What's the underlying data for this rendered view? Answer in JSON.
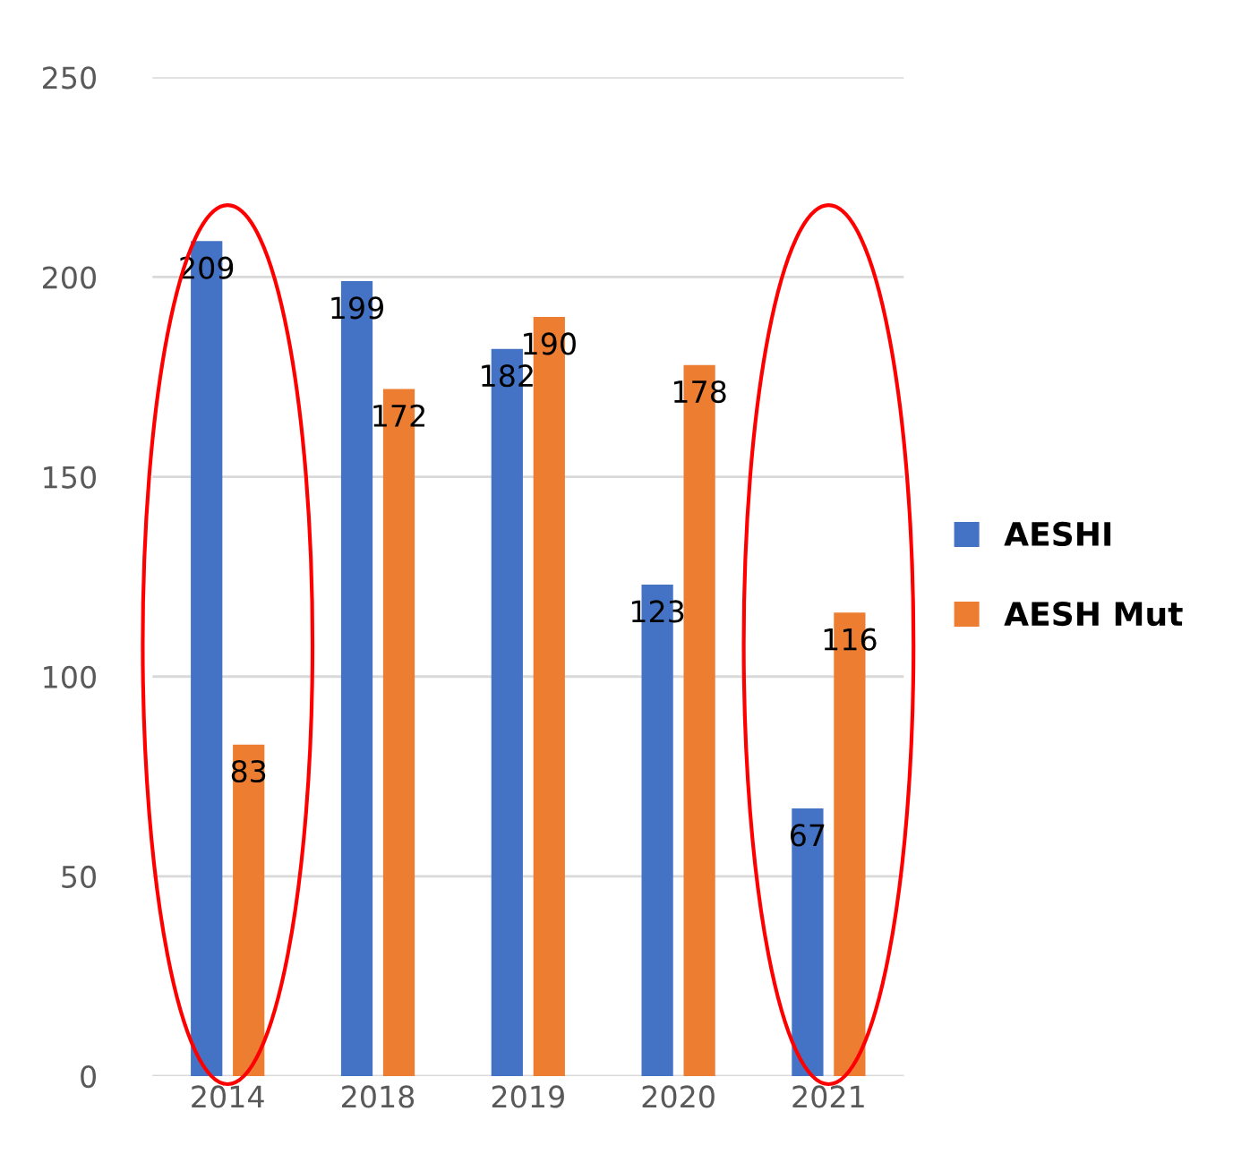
{
  "chart_data": {
    "type": "bar",
    "categories": [
      "2014",
      "2018",
      "2019",
      "2020",
      "2021"
    ],
    "series": [
      {
        "name": "AESHI",
        "color": "#4472c4",
        "values": [
          209,
          199,
          182,
          123,
          67
        ]
      },
      {
        "name": "AESH Mut",
        "color": "#ed7d31",
        "values": [
          83,
          172,
          190,
          178,
          116
        ]
      }
    ],
    "ylim": [
      0,
      250
    ],
    "yticks": [
      0,
      50,
      100,
      150,
      200,
      250
    ],
    "grid": "y",
    "legend": "right",
    "data_labels": true
  }
}
